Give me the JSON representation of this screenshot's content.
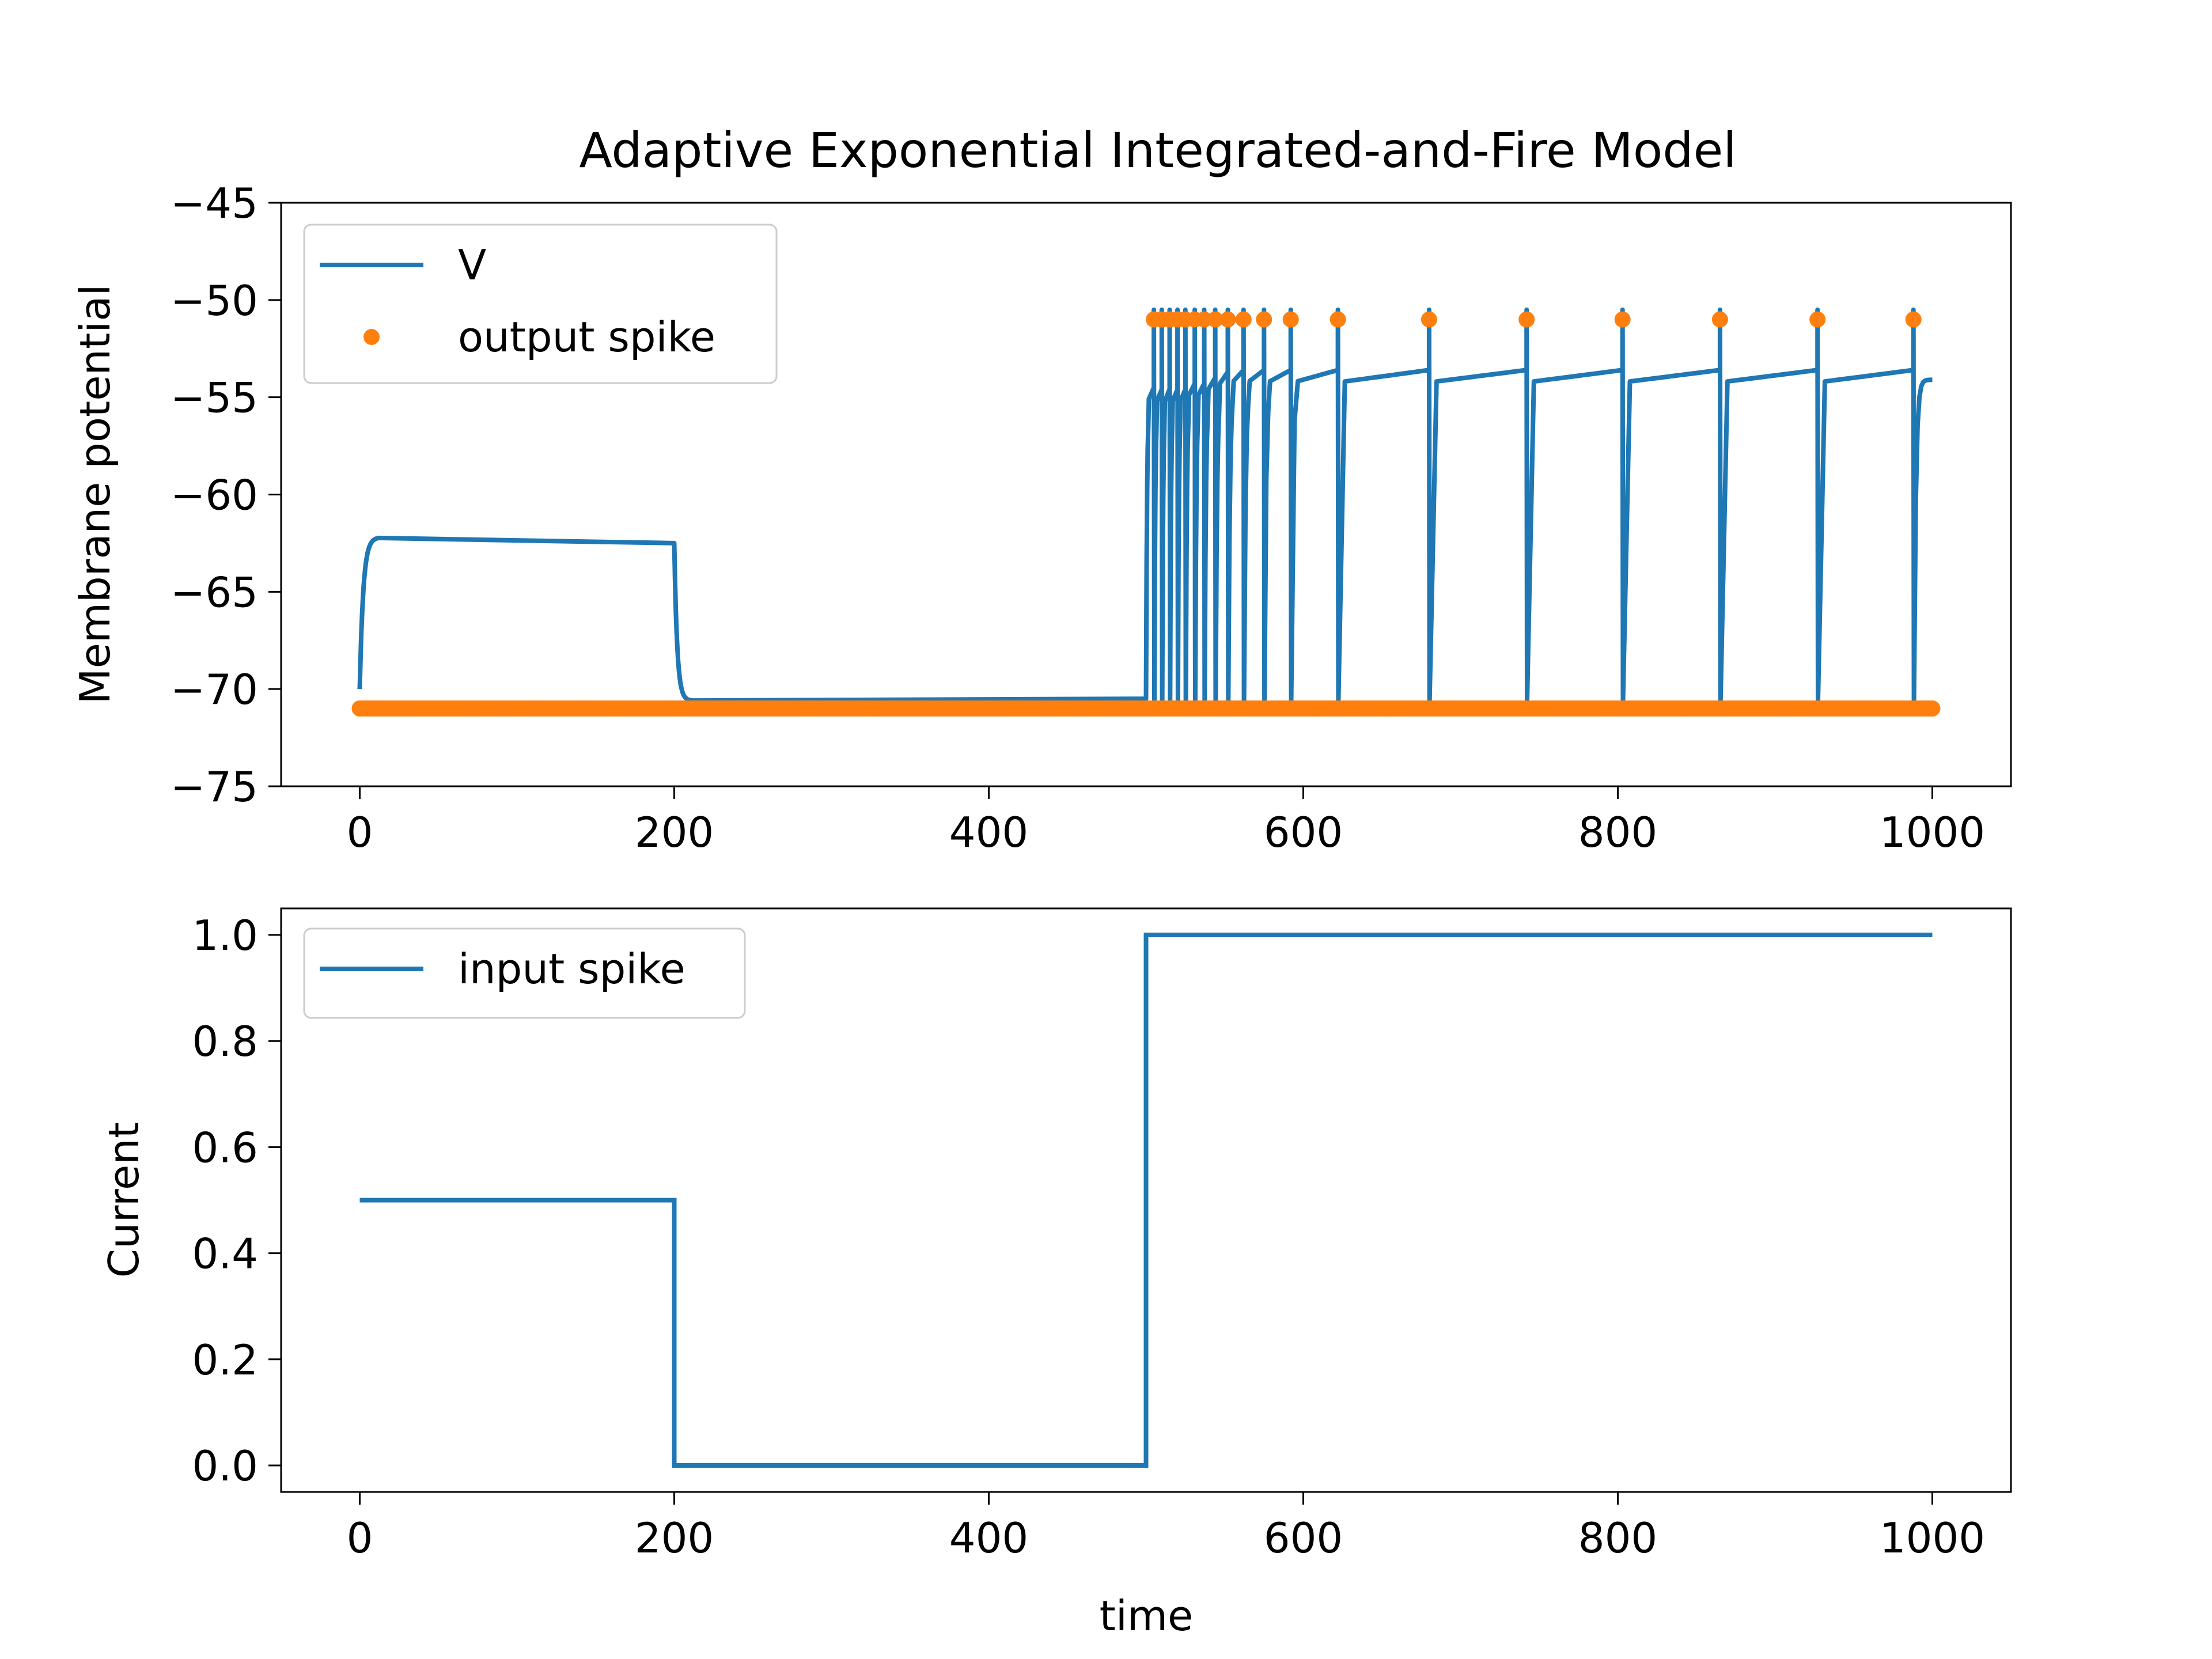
{
  "title": "Adaptive Exponential Integrated-and-Fire Model",
  "colors": {
    "v_line": "#1f77b4",
    "spike_marker": "#ff7f0e",
    "input_line": "#1f77b4",
    "axes": "#000000",
    "legend_border": "#cccccc"
  },
  "chart_data": [
    {
      "type": "line",
      "panel": "top",
      "title": "Adaptive Exponential Integrated-and-Fire Model",
      "xlabel": "",
      "ylabel": "Membrane potential",
      "xlim": [
        -50,
        1050
      ],
      "ylim": [
        -75,
        -45
      ],
      "x_ticks": [
        0,
        200,
        400,
        600,
        800,
        1000
      ],
      "y_ticks": [
        -75,
        -70,
        -65,
        -60,
        -55,
        -50,
        -45
      ],
      "x_tick_labels": [
        "0",
        "200",
        "400",
        "600",
        "800",
        "1000"
      ],
      "y_tick_labels": [
        "−75",
        "−70",
        "−65",
        "−60",
        "−55",
        "−50",
        "−45"
      ],
      "legend_position": "upper-left",
      "series": [
        {
          "name": "V",
          "style": "line",
          "description": "membrane potential trace",
          "rest_value": -70.6,
          "plateau_segment": {
            "start_x": 0,
            "end_x": 200,
            "start_value": -70,
            "peak_value": -62.2,
            "end_value": -62.5
          },
          "spike_peak_value": -50.5,
          "reset_value": -70.6,
          "post_spike_plateau_value": -54.2,
          "end_x": 1000,
          "end_value": -54.1
        },
        {
          "name": "output spike",
          "style": "markers",
          "baseline_value": -71,
          "spike_value": -51,
          "spike_times": [
            505,
            510,
            515,
            520,
            525,
            531,
            537,
            544,
            552,
            562,
            575,
            592,
            622,
            680,
            742,
            803,
            865,
            927,
            988
          ]
        }
      ]
    },
    {
      "type": "line",
      "panel": "bottom",
      "xlabel": "time",
      "ylabel": "Current",
      "xlim": [
        -50,
        1050
      ],
      "ylim": [
        -0.05,
        1.05
      ],
      "x_ticks": [
        0,
        200,
        400,
        600,
        800,
        1000
      ],
      "y_ticks": [
        0.0,
        0.2,
        0.4,
        0.6,
        0.8,
        1.0
      ],
      "x_tick_labels": [
        "0",
        "200",
        "400",
        "600",
        "800",
        "1000"
      ],
      "y_tick_labels": [
        "0.0",
        "0.2",
        "0.4",
        "0.6",
        "0.8",
        "1.0"
      ],
      "legend_position": "upper-left",
      "series": [
        {
          "name": "input spike",
          "x": [
            0,
            200,
            200,
            500,
            500,
            1000
          ],
          "y": [
            0.5,
            0.5,
            0.0,
            0.0,
            1.0,
            1.0
          ]
        }
      ]
    }
  ]
}
